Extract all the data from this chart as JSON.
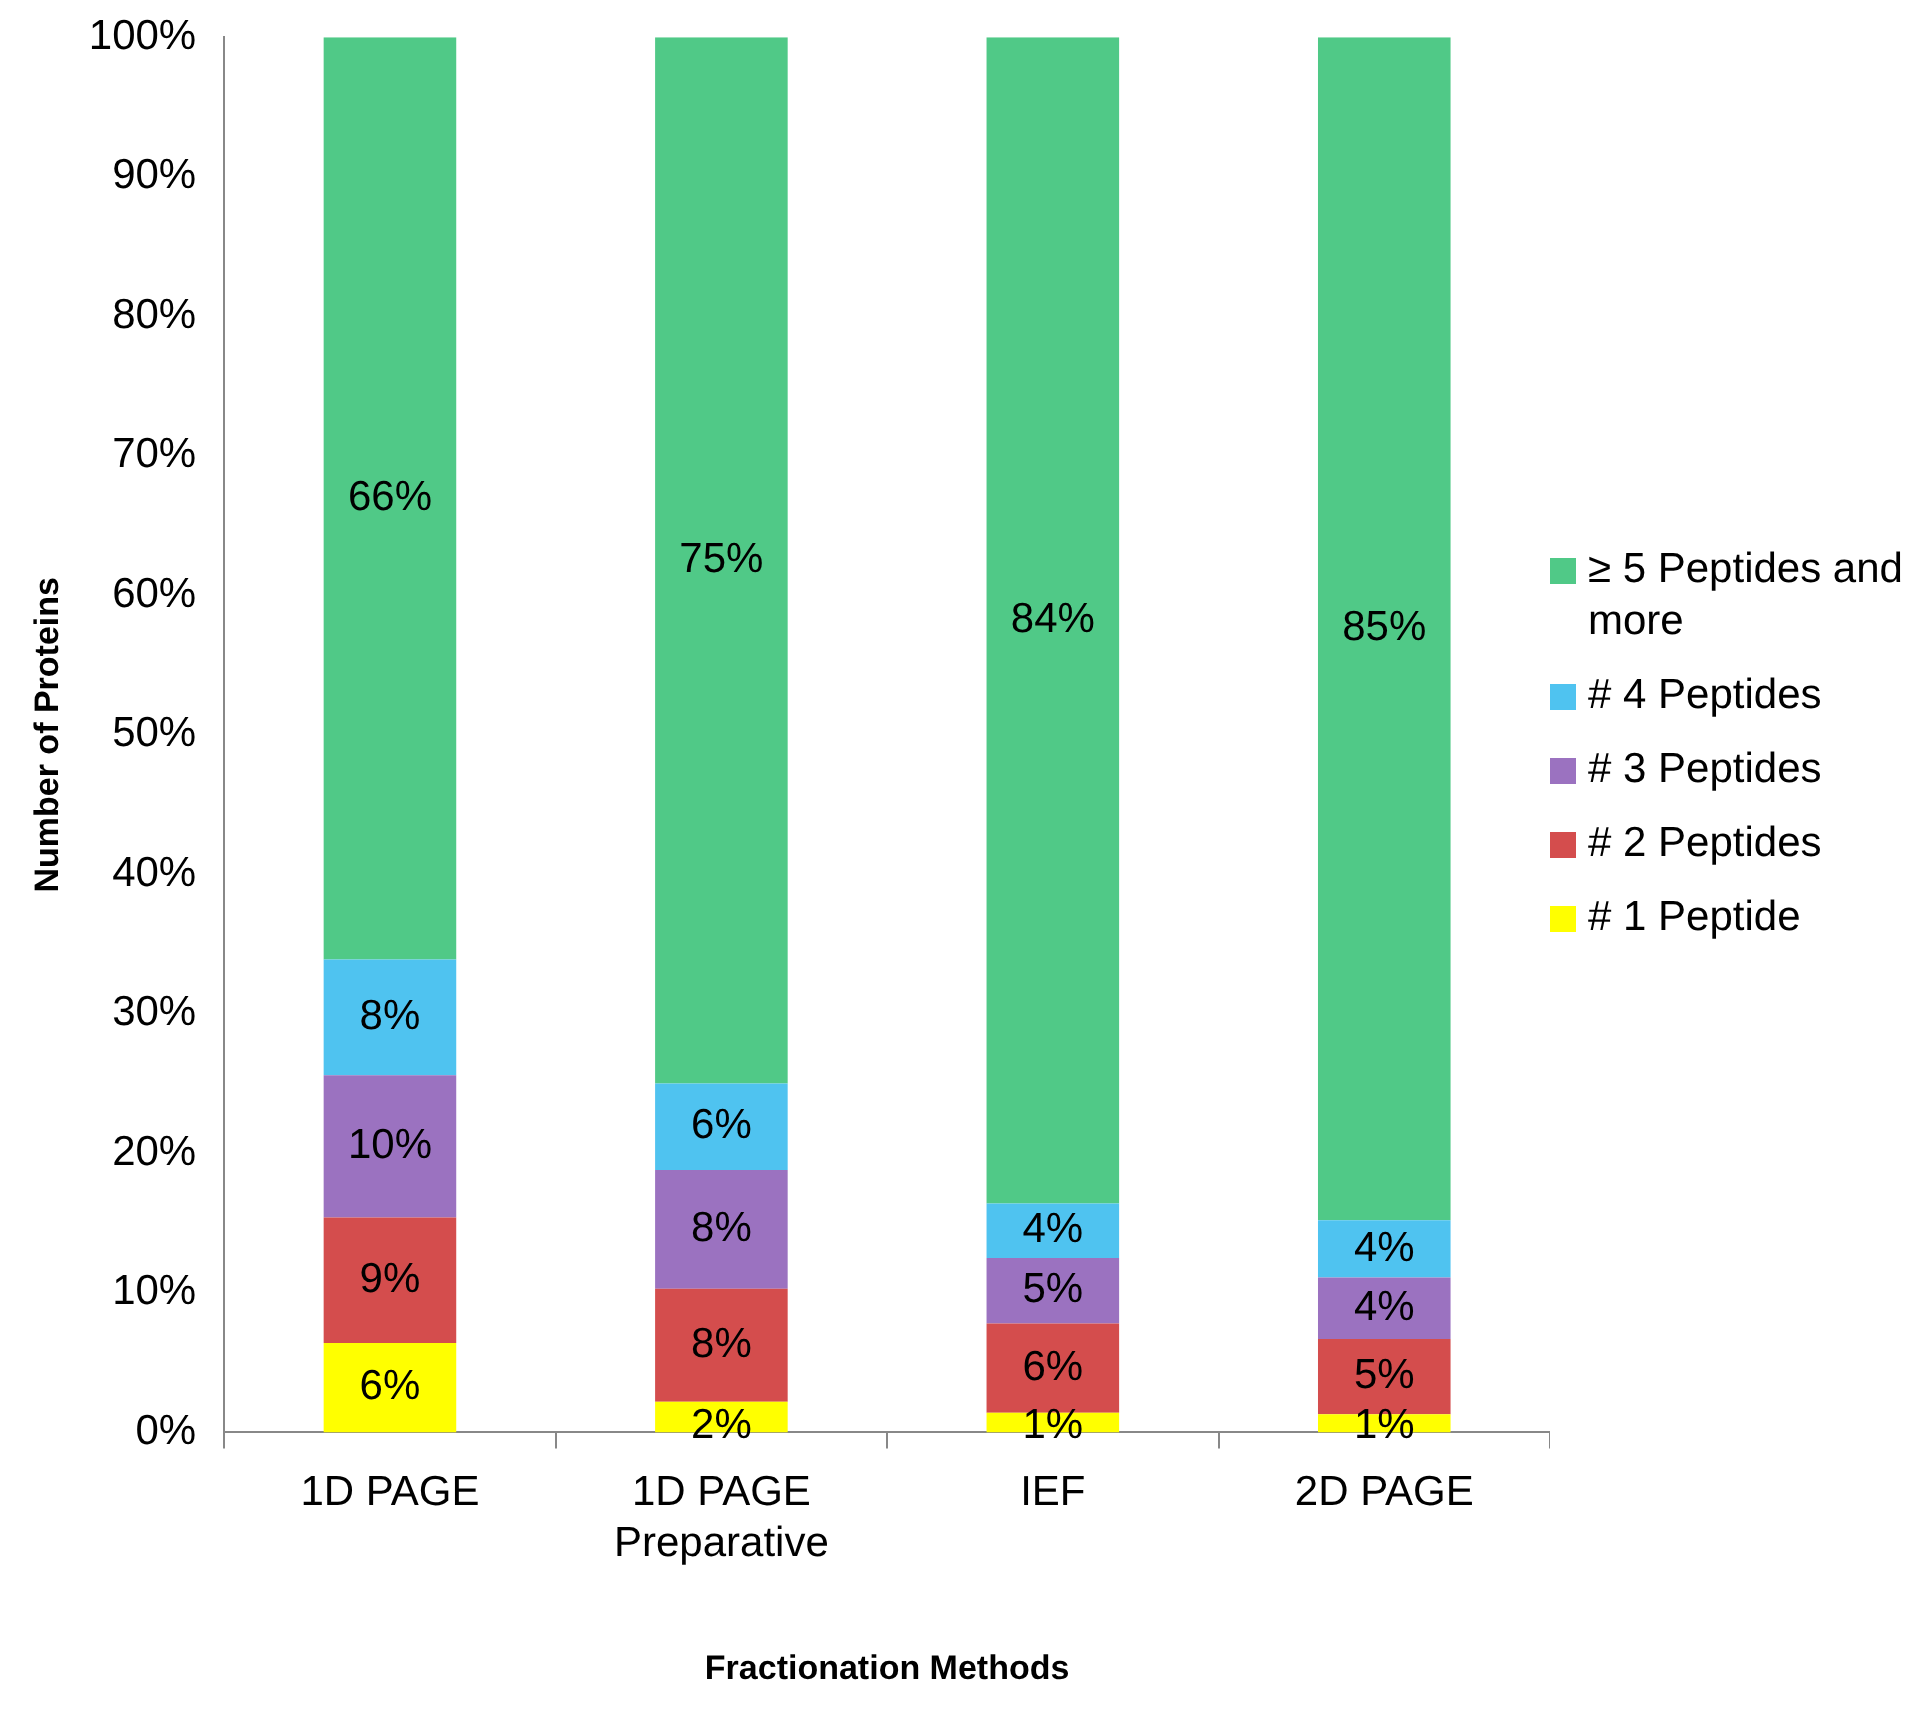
{
  "chart_data": {
    "type": "bar",
    "stacked": true,
    "xlabel": "Fractionation Methods",
    "ylabel": "Number of Proteins",
    "categories": [
      "1D PAGE",
      "1D PAGE Preparative",
      "IEF",
      "2D PAGE"
    ],
    "series": [
      {
        "name": "# 1 Peptide",
        "color": "#ffff00",
        "values": [
          6.4,
          2.2,
          1.4,
          1.3
        ],
        "value_labels": [
          "6%",
          "2%",
          "1%",
          "1%"
        ]
      },
      {
        "name": "# 2 Peptides",
        "color": "#d44d4d",
        "values": [
          9.0,
          8.1,
          6.4,
          5.4
        ],
        "value_labels": [
          "9%",
          "8%",
          "6%",
          "5%"
        ]
      },
      {
        "name": "# 3 Peptides",
        "color": "#9b72c0",
        "values": [
          10.2,
          8.5,
          4.7,
          4.4
        ],
        "value_labels": [
          "10%",
          "8%",
          "5%",
          "4%"
        ]
      },
      {
        "name": "# 4 Peptides",
        "color": "#4fc3f0",
        "values": [
          8.3,
          6.2,
          3.9,
          4.1
        ],
        "value_labels": [
          "8%",
          "6%",
          "4%",
          "4%"
        ]
      },
      {
        "name": "≥ 5 Peptides and more",
        "color": "#50c987",
        "values": [
          66.1,
          75.0,
          83.6,
          84.8
        ],
        "value_labels": [
          "66%",
          "75%",
          "84%",
          "85%"
        ]
      }
    ],
    "ylim": [
      0,
      100
    ],
    "yticks": [
      {
        "value": 0,
        "label": "0%"
      },
      {
        "value": 10,
        "label": "10%"
      },
      {
        "value": 20,
        "label": "20%"
      },
      {
        "value": 30,
        "label": "30%"
      },
      {
        "value": 40,
        "label": "40%"
      },
      {
        "value": 50,
        "label": "50%"
      },
      {
        "value": 60,
        "label": "60%"
      },
      {
        "value": 70,
        "label": "70%"
      },
      {
        "value": 80,
        "label": "80%"
      },
      {
        "value": 90,
        "label": "90%"
      },
      {
        "value": 100,
        "label": "100%"
      }
    ],
    "grid": false,
    "legend": "right"
  }
}
